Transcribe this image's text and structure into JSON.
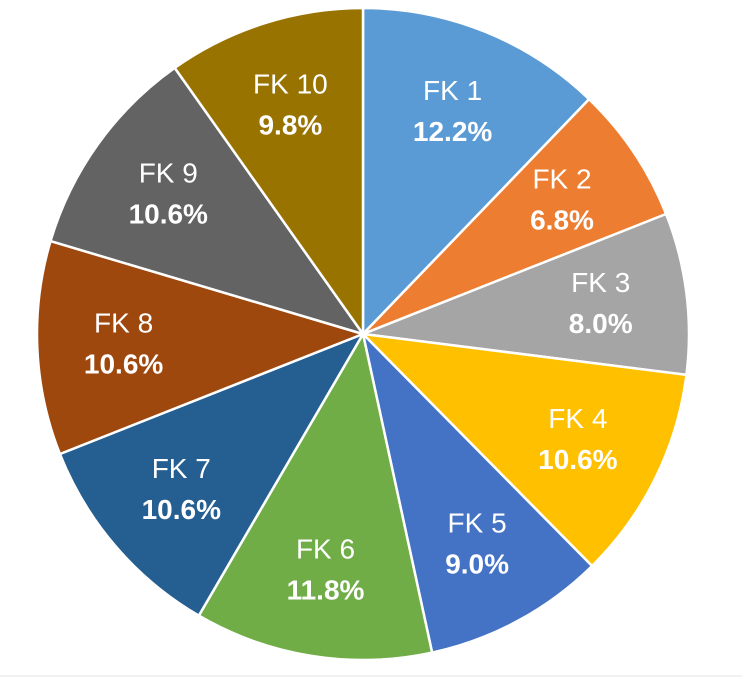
{
  "chart_data": {
    "type": "pie",
    "title": "",
    "start": "12 o'clock",
    "direction": "clockwise",
    "slices": [
      {
        "label": "FK 1",
        "value_label": "12.2%",
        "value": 12.2,
        "color": "#5B9BD5"
      },
      {
        "label": "FK 2",
        "value_label": "6.8%",
        "value": 6.8,
        "color": "#ED7D31"
      },
      {
        "label": "FK 3",
        "value_label": "8.0%",
        "value": 8.0,
        "color": "#A5A5A5"
      },
      {
        "label": "FK 4",
        "value_label": "10.6%",
        "value": 10.6,
        "color": "#FFC000"
      },
      {
        "label": "FK 5",
        "value_label": "9.0%",
        "value": 9.0,
        "color": "#4472C4"
      },
      {
        "label": "FK 6",
        "value_label": "11.8%",
        "value": 11.8,
        "color": "#70AD47"
      },
      {
        "label": "FK 7",
        "value_label": "10.6%",
        "value": 10.6,
        "color": "#255E91"
      },
      {
        "label": "FK 8",
        "value_label": "10.6%",
        "value": 10.6,
        "color": "#9E480E"
      },
      {
        "label": "FK 9",
        "value_label": "10.6%",
        "value": 10.6,
        "color": "#636363"
      },
      {
        "label": "FK 10",
        "value_label": "9.8%",
        "value": 9.8,
        "color": "#997300"
      }
    ]
  }
}
